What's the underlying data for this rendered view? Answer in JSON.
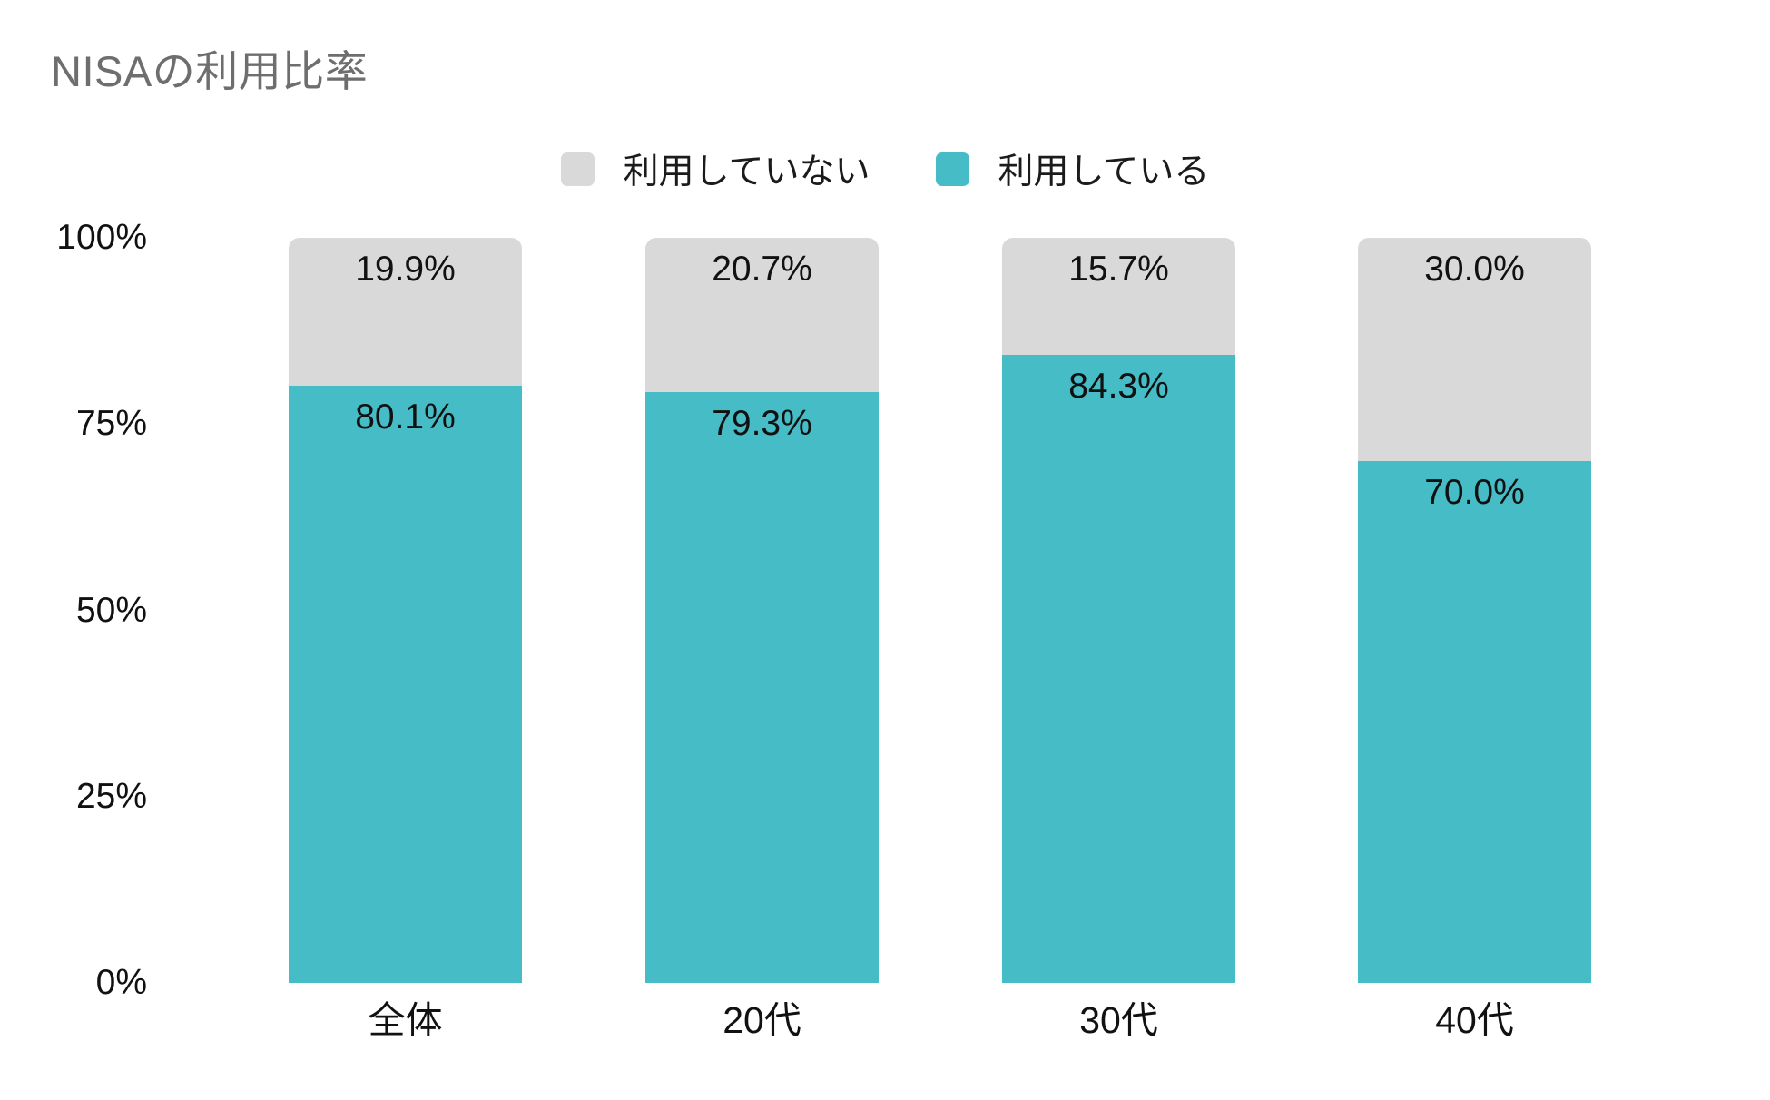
{
  "title": "NISAの利用比率",
  "colors": {
    "using": "#45bcc6",
    "not_using": "#d9d9d9",
    "title_text": "#6e6e6e",
    "label_text": "#111111",
    "background": "#ffffff"
  },
  "legend": {
    "position": "top-center",
    "items": [
      {
        "label": "利用していない",
        "color": "#d9d9d9"
      },
      {
        "label": "利用している",
        "color": "#45bcc6"
      }
    ]
  },
  "chart_data": {
    "type": "bar",
    "stacked": true,
    "orientation": "vertical",
    "title": "NISAの利用比率",
    "categories": [
      "全体",
      "20代",
      "30代",
      "40代"
    ],
    "series": [
      {
        "name": "利用していない",
        "color": "#d9d9d9",
        "values": [
          19.9,
          20.7,
          15.7,
          30.0
        ],
        "labels": [
          "19.9%",
          "20.7%",
          "15.7%",
          "30.0%"
        ]
      },
      {
        "name": "利用している",
        "color": "#45bcc6",
        "values": [
          80.1,
          79.3,
          84.3,
          70.0
        ],
        "labels": [
          "80.1%",
          "79.3%",
          "84.3%",
          "70.0%"
        ]
      }
    ],
    "xlabel": "",
    "ylabel": "",
    "yticks": [
      "0%",
      "25%",
      "50%",
      "75%",
      "100%"
    ],
    "ylim": [
      0,
      100
    ],
    "grid": false,
    "legend_position": "top-center"
  }
}
